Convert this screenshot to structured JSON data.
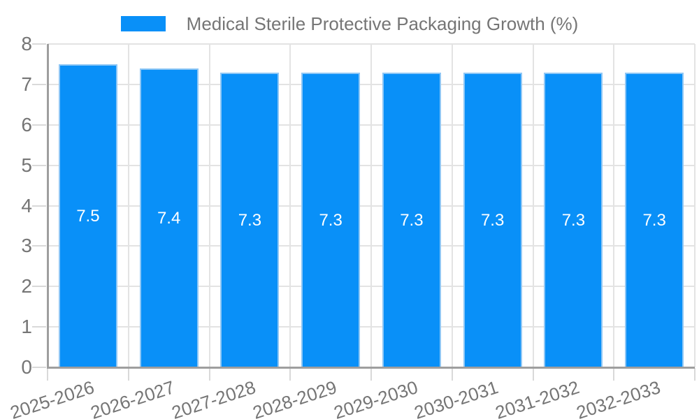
{
  "chart_data": {
    "type": "bar",
    "title": "Medical Sterile Protective Packaging Growth (%)",
    "categories": [
      "2025-2026",
      "2026-2027",
      "2027-2028",
      "2028-2029",
      "2029-2030",
      "2030-2031",
      "2031-2032",
      "2032-2033"
    ],
    "values": [
      7.5,
      7.4,
      7.3,
      7.3,
      7.3,
      7.3,
      7.3,
      7.3
    ],
    "value_labels": [
      "7.5",
      "7.4",
      "7.3",
      "7.3",
      "7.3",
      "7.3",
      "7.3",
      "7.3"
    ],
    "xlabel": "",
    "ylabel": "",
    "ylim": [
      0,
      8
    ],
    "yticks": [
      "0",
      "1",
      "2",
      "3",
      "4",
      "5",
      "6",
      "7",
      "8"
    ],
    "grid": true,
    "legend_position": "top-center",
    "colors": {
      "bar": "#0990F8",
      "bar_border": "#8FC7F5",
      "bar_value_text": "#FFFFFF",
      "axis_line": "#9E9E9E",
      "gridline": "#E3E3E3",
      "tick": "#D9D9D9",
      "axis_label": "#757575",
      "legend_text": "#757575",
      "background": "#FFFFFF"
    }
  }
}
